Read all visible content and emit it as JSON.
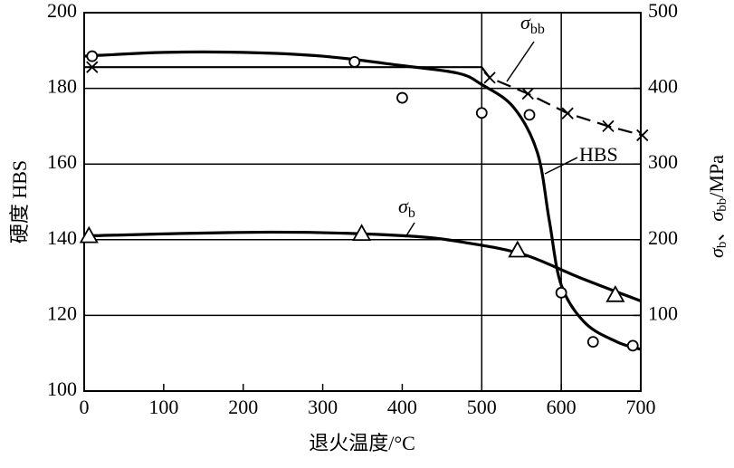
{
  "chart_data": {
    "type": "line",
    "x_label": "退火温度/°C",
    "y_label": "硬度 HBS",
    "y2_label": {
      "symbol": "σ",
      "sub1": "b",
      "sep": "、",
      "symbol2": "σ",
      "sub2": "bb",
      "unit": "/MPa"
    },
    "xlim": [
      0,
      700
    ],
    "xticks": [
      0,
      100,
      200,
      300,
      400,
      500,
      600,
      700
    ],
    "ylim": [
      100,
      200
    ],
    "yticks": [
      100,
      120,
      140,
      160,
      180,
      200
    ],
    "y2lim": [
      0,
      500
    ],
    "y2ticks": [
      100,
      200,
      300,
      400,
      500
    ],
    "xgrid": [
      500,
      600
    ],
    "color": "#000000",
    "series": [
      {
        "label": {
          "symbol": "HBS",
          "sub": ""
        },
        "axis": "y",
        "marker": "circle",
        "x": [
          10,
          340,
          400,
          500,
          560,
          600,
          640,
          690
        ],
        "values": [
          188.5,
          187,
          177.5,
          173.5,
          173,
          126,
          113,
          112
        ],
        "curve_x": [
          0,
          100,
          200,
          300,
          400,
          470,
          500,
          540,
          570,
          585,
          600,
          630,
          670,
          700
        ],
        "curve": [
          188.5,
          189.5,
          189.5,
          188.5,
          186,
          184,
          181,
          175,
          163,
          145,
          128,
          118,
          113,
          111
        ]
      },
      {
        "label": {
          "symbol": "σ",
          "sub": "bb"
        },
        "axis": "y2",
        "marker": "cross",
        "x": [
          10,
          510,
          558,
          608,
          659,
          702
        ],
        "values": [
          428,
          414,
          393,
          367,
          350,
          338
        ],
        "curve_x": [
          0,
          500,
          510,
          558,
          608,
          659,
          702
        ],
        "curve": [
          428,
          428,
          414,
          393,
          367,
          350,
          338
        ]
      },
      {
        "label": {
          "symbol": "σ",
          "sub": "b"
        },
        "axis": "y2",
        "marker": "triangle",
        "x": [
          6,
          349,
          545,
          668
        ],
        "values": [
          205,
          208,
          186,
          127
        ],
        "curve_x": [
          0,
          236,
          406,
          486,
          554,
          623,
          700
        ],
        "curve": [
          205,
          210,
          205,
          195,
          180,
          150,
          119
        ]
      }
    ]
  }
}
